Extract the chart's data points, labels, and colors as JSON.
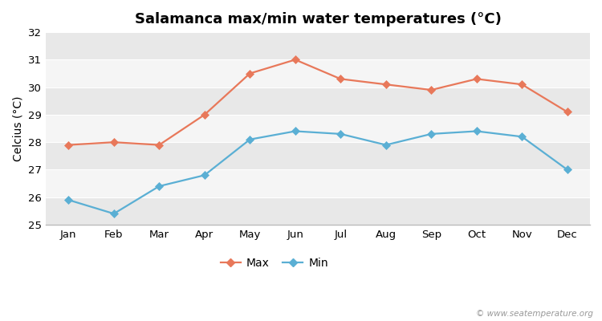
{
  "title": "Salamanca max/min water temperatures (°C)",
  "ylabel": "Celcius (°C)",
  "months": [
    "Jan",
    "Feb",
    "Mar",
    "Apr",
    "May",
    "Jun",
    "Jul",
    "Aug",
    "Sep",
    "Oct",
    "Nov",
    "Dec"
  ],
  "max_temps": [
    27.9,
    28.0,
    27.9,
    29.0,
    30.5,
    31.0,
    30.3,
    30.1,
    29.9,
    30.3,
    30.1,
    29.1
  ],
  "min_temps": [
    25.9,
    25.4,
    26.4,
    26.8,
    28.1,
    28.4,
    28.3,
    27.9,
    28.3,
    28.4,
    28.2,
    27.0
  ],
  "max_color": "#e8785a",
  "min_color": "#5aafd4",
  "bg_color": "#ffffff",
  "band_colors": [
    "#e8e8e8",
    "#f5f5f5"
  ],
  "ylim": [
    25,
    32
  ],
  "yticks": [
    25,
    26,
    27,
    28,
    29,
    30,
    31,
    32
  ],
  "legend_labels": [
    "Max",
    "Min"
  ],
  "watermark": "© www.seatemperature.org",
  "title_fontsize": 13,
  "axis_label_fontsize": 10,
  "tick_fontsize": 9.5,
  "legend_fontsize": 10
}
